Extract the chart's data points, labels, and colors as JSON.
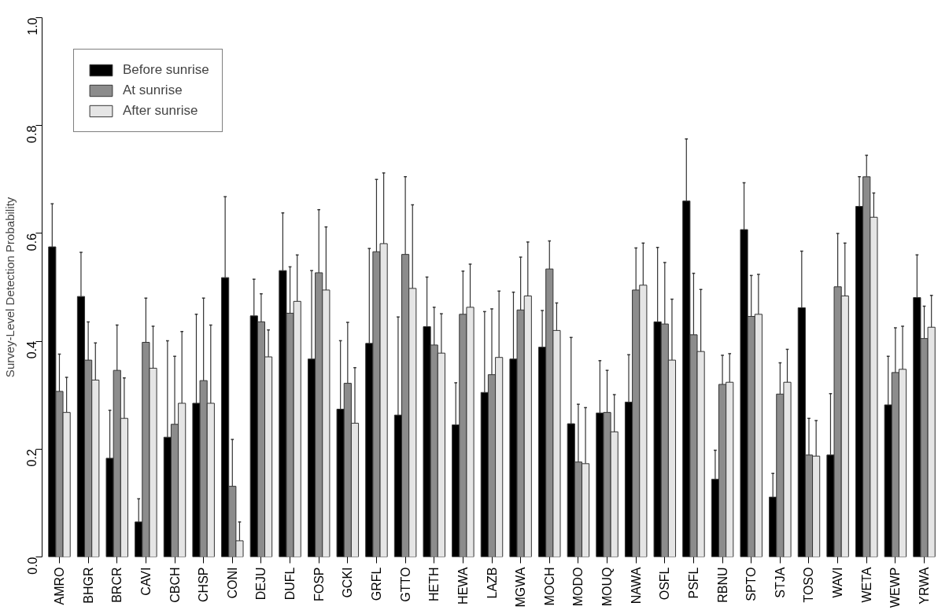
{
  "chart_data": {
    "type": "bar",
    "ylabel": "Survey-Level Detection Probability",
    "categories": [
      "AMRO",
      "BHGR",
      "BRCR",
      "CAVI",
      "CBCH",
      "CHSP",
      "CONI",
      "DEJU",
      "DUFL",
      "FOSP",
      "GCKI",
      "GRFL",
      "GTTO",
      "HETH",
      "HEWA",
      "LAZB",
      "MGWA",
      "MOCH",
      "MODO",
      "MOUQ",
      "NAWA",
      "OSFL",
      "PSFL",
      "RBNU",
      "SPTO",
      "STJA",
      "TOSO",
      "WAVI",
      "WETA",
      "WEWP",
      "YRWA"
    ],
    "series": [
      {
        "name": "Before sunrise",
        "color": "#000000",
        "values": [
          0.575,
          0.483,
          0.183,
          0.065,
          0.222,
          0.285,
          0.518,
          0.447,
          0.531,
          0.367,
          0.274,
          0.396,
          0.263,
          0.427,
          0.245,
          0.305,
          0.367,
          0.389,
          0.247,
          0.267,
          0.287,
          0.436,
          0.66,
          0.144,
          0.607,
          0.111,
          0.462,
          0.189,
          0.65,
          0.282,
          0.481
        ],
        "errors": [
          [
            0.575,
            0.655
          ],
          [
            0.483,
            0.565
          ],
          [
            0.183,
            0.272
          ],
          [
            0.065,
            0.108
          ],
          [
            0.222,
            0.401
          ],
          [
            0.285,
            0.45
          ],
          [
            0.518,
            0.668
          ],
          [
            0.447,
            0.515
          ],
          [
            0.531,
            0.638
          ],
          [
            0.367,
            0.531
          ],
          [
            0.274,
            0.401
          ],
          [
            0.396,
            0.572
          ],
          [
            0.263,
            0.445
          ],
          [
            0.427,
            0.519
          ],
          [
            0.245,
            0.323
          ],
          [
            0.305,
            0.455
          ],
          [
            0.367,
            0.491
          ],
          [
            0.389,
            0.457
          ],
          [
            0.247,
            0.407
          ],
          [
            0.267,
            0.364
          ],
          [
            0.287,
            0.375
          ],
          [
            0.436,
            0.574
          ],
          [
            0.66,
            0.775
          ],
          [
            0.144,
            0.198
          ],
          [
            0.607,
            0.694
          ],
          [
            0.111,
            0.155
          ],
          [
            0.462,
            0.567
          ],
          [
            0.189,
            0.303
          ],
          [
            0.65,
            0.705
          ],
          [
            0.282,
            0.372
          ],
          [
            0.481,
            0.56
          ]
        ]
      },
      {
        "name": "At sunrise",
        "color": "#8c8c8c",
        "values": [
          0.307,
          0.365,
          0.346,
          0.398,
          0.246,
          0.327,
          0.131,
          0.436,
          0.452,
          0.527,
          0.322,
          0.566,
          0.561,
          0.393,
          0.45,
          0.338,
          0.458,
          0.534,
          0.176,
          0.268,
          0.495,
          0.432,
          0.412,
          0.32,
          0.446,
          0.302,
          0.189,
          0.501,
          0.705,
          0.342,
          0.405
        ],
        "errors": [
          [
            0.307,
            0.376
          ],
          [
            0.365,
            0.436
          ],
          [
            0.346,
            0.43
          ],
          [
            0.398,
            0.48
          ],
          [
            0.246,
            0.372
          ],
          [
            0.327,
            0.48
          ],
          [
            0.131,
            0.218
          ],
          [
            0.436,
            0.488
          ],
          [
            0.452,
            0.538
          ],
          [
            0.527,
            0.644
          ],
          [
            0.322,
            0.435
          ],
          [
            0.566,
            0.7
          ],
          [
            0.561,
            0.705
          ],
          [
            0.393,
            0.463
          ],
          [
            0.45,
            0.53
          ],
          [
            0.338,
            0.46
          ],
          [
            0.458,
            0.556
          ],
          [
            0.534,
            0.586
          ],
          [
            0.176,
            0.283
          ],
          [
            0.268,
            0.346
          ],
          [
            0.495,
            0.573
          ],
          [
            0.432,
            0.546
          ],
          [
            0.412,
            0.526
          ],
          [
            0.32,
            0.374
          ],
          [
            0.446,
            0.522
          ],
          [
            0.302,
            0.36
          ],
          [
            0.189,
            0.257
          ],
          [
            0.501,
            0.6
          ],
          [
            0.705,
            0.745
          ],
          [
            0.342,
            0.425
          ],
          [
            0.405,
            0.465
          ]
        ]
      },
      {
        "name": "After sunrise",
        "color": "#e5e5e5",
        "values": [
          0.268,
          0.328,
          0.257,
          0.35,
          0.285,
          0.285,
          0.03,
          0.371,
          0.474,
          0.495,
          0.248,
          0.581,
          0.498,
          0.378,
          0.463,
          0.37,
          0.484,
          0.42,
          0.173,
          0.232,
          0.504,
          0.365,
          0.381,
          0.324,
          0.45,
          0.324,
          0.187,
          0.484,
          0.63,
          0.348,
          0.426
        ],
        "errors": [
          [
            0.268,
            0.333
          ],
          [
            0.328,
            0.397
          ],
          [
            0.257,
            0.332
          ],
          [
            0.35,
            0.428
          ],
          [
            0.285,
            0.418
          ],
          [
            0.285,
            0.43
          ],
          [
            0.03,
            0.065
          ],
          [
            0.371,
            0.421
          ],
          [
            0.474,
            0.56
          ],
          [
            0.495,
            0.612
          ],
          [
            0.248,
            0.351
          ],
          [
            0.581,
            0.712
          ],
          [
            0.498,
            0.653
          ],
          [
            0.378,
            0.451
          ],
          [
            0.463,
            0.543
          ],
          [
            0.37,
            0.493
          ],
          [
            0.484,
            0.584
          ],
          [
            0.42,
            0.471
          ],
          [
            0.173,
            0.277
          ],
          [
            0.232,
            0.301
          ],
          [
            0.504,
            0.582
          ],
          [
            0.365,
            0.478
          ],
          [
            0.381,
            0.496
          ],
          [
            0.324,
            0.377
          ],
          [
            0.45,
            0.524
          ],
          [
            0.324,
            0.385
          ],
          [
            0.187,
            0.253
          ],
          [
            0.484,
            0.582
          ],
          [
            0.63,
            0.675
          ],
          [
            0.348,
            0.428
          ],
          [
            0.426,
            0.485
          ]
        ]
      }
    ],
    "ylim": [
      0,
      1
    ],
    "yticks": [
      {
        "value": 0,
        "label": "0.0"
      },
      0.2,
      0.4,
      0.6,
      0.8,
      {
        "value": 1,
        "label": "1.0"
      }
    ],
    "grid": false,
    "legend": "top left"
  }
}
